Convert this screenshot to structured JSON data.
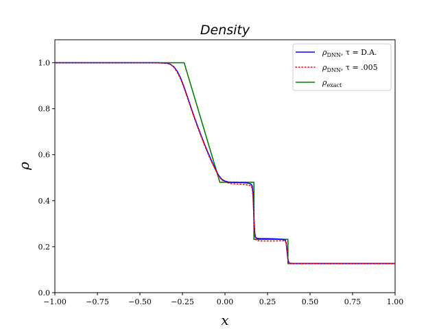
{
  "chart_data": {
    "type": "line",
    "title": "Density",
    "xlabel": "x",
    "ylabel": "ρ",
    "xlim": [
      -1.0,
      1.0
    ],
    "ylim": [
      0.0,
      1.1
    ],
    "xticks": [
      -1.0,
      -0.75,
      -0.5,
      -0.25,
      0.0,
      0.25,
      0.5,
      0.75,
      1.0
    ],
    "xtick_labels": [
      "−1.00",
      "−0.75",
      "−0.50",
      "−0.25",
      "0.00",
      "0.25",
      "0.50",
      "0.75",
      "1.00"
    ],
    "yticks": [
      0.0,
      0.2,
      0.4,
      0.6,
      0.8,
      1.0
    ],
    "ytick_labels": [
      "0.0",
      "0.2",
      "0.4",
      "0.6",
      "0.8",
      "1.0"
    ],
    "grid": false,
    "legend_position": "top-right",
    "series": [
      {
        "name": "ρDNN, τ = D.A.",
        "color": "#0000ff",
        "style": "solid",
        "x": [
          -1.0,
          -0.6,
          -0.4,
          -0.34,
          -0.32,
          -0.3,
          -0.28,
          -0.26,
          -0.24,
          -0.22,
          -0.2,
          -0.18,
          -0.16,
          -0.14,
          -0.12,
          -0.1,
          -0.08,
          -0.06,
          -0.04,
          -0.02,
          0.0,
          0.02,
          0.04,
          0.08,
          0.12,
          0.15,
          0.16,
          0.165,
          0.17,
          0.175,
          0.18,
          0.19,
          0.21,
          0.25,
          0.3,
          0.34,
          0.355,
          0.36,
          0.365,
          0.37,
          0.375,
          0.38,
          0.4,
          0.5,
          0.75,
          1.0
        ],
        "y": [
          1.0,
          1.0,
          1.0,
          0.998,
          0.993,
          0.982,
          0.962,
          0.932,
          0.893,
          0.85,
          0.806,
          0.763,
          0.722,
          0.683,
          0.645,
          0.609,
          0.575,
          0.543,
          0.513,
          0.494,
          0.485,
          0.481,
          0.48,
          0.479,
          0.478,
          0.474,
          0.465,
          0.43,
          0.33,
          0.26,
          0.24,
          0.236,
          0.235,
          0.235,
          0.234,
          0.232,
          0.228,
          0.215,
          0.18,
          0.145,
          0.132,
          0.128,
          0.127,
          0.127,
          0.127,
          0.127
        ]
      },
      {
        "name": "ρDNN, τ = .005",
        "color": "#ff0000",
        "style": "dotted",
        "x": [
          -1.0,
          -0.6,
          -0.4,
          -0.34,
          -0.32,
          -0.3,
          -0.28,
          -0.26,
          -0.24,
          -0.22,
          -0.2,
          -0.18,
          -0.16,
          -0.14,
          -0.12,
          -0.1,
          -0.08,
          -0.06,
          -0.04,
          -0.02,
          0.0,
          0.02,
          0.04,
          0.08,
          0.12,
          0.15,
          0.16,
          0.165,
          0.17,
          0.175,
          0.18,
          0.19,
          0.21,
          0.25,
          0.3,
          0.34,
          0.355,
          0.36,
          0.365,
          0.37,
          0.375,
          0.38,
          0.4,
          0.5,
          0.75,
          1.0
        ],
        "y": [
          1.0,
          1.0,
          1.0,
          0.998,
          0.993,
          0.98,
          0.958,
          0.928,
          0.889,
          0.846,
          0.802,
          0.759,
          0.718,
          0.679,
          0.641,
          0.605,
          0.571,
          0.54,
          0.51,
          0.491,
          0.482,
          0.477,
          0.474,
          0.472,
          0.47,
          0.466,
          0.455,
          0.415,
          0.32,
          0.25,
          0.232,
          0.226,
          0.225,
          0.225,
          0.225,
          0.226,
          0.224,
          0.21,
          0.175,
          0.142,
          0.13,
          0.127,
          0.126,
          0.126,
          0.126,
          0.126
        ]
      },
      {
        "name": "ρexact",
        "color": "#008000",
        "style": "solid",
        "x": [
          -1.0,
          -0.26,
          -0.24,
          -0.03,
          0.17,
          0.17,
          0.37,
          0.37,
          1.0
        ],
        "y": [
          1.0,
          1.0,
          1.0,
          0.48,
          0.48,
          0.232,
          0.232,
          0.126,
          0.126
        ]
      }
    ]
  }
}
